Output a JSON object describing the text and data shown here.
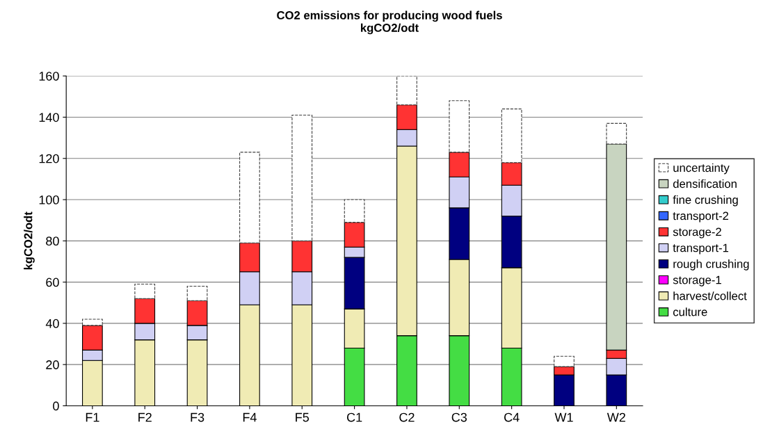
{
  "chart_data": {
    "type": "bar",
    "stacked": true,
    "title": "CO2 emissions for producing wood fuels\nkgCO2/odt",
    "ylabel": "kgCO2/odt",
    "categories": [
      "F1",
      "F2",
      "F3",
      "F4",
      "F5",
      "C1",
      "C2",
      "C3",
      "C4",
      "W1",
      "W2"
    ],
    "series": [
      {
        "name": "culture",
        "color": "#44dd44",
        "values": [
          0,
          0,
          0,
          0,
          0,
          28,
          34,
          34,
          28,
          0,
          0
        ]
      },
      {
        "name": "harvest/collect",
        "color": "#f0ebb4",
        "values": [
          22,
          32,
          32,
          49,
          49,
          19,
          92,
          37,
          39,
          0,
          0
        ]
      },
      {
        "name": "storage-1",
        "color": "#ff00ff",
        "values": [
          0,
          0,
          0,
          0,
          0,
          0,
          0,
          0,
          0,
          0,
          0
        ]
      },
      {
        "name": "rough crushing",
        "color": "#000080",
        "values": [
          0,
          0,
          0,
          0,
          0,
          25,
          0,
          25,
          25,
          15,
          15
        ]
      },
      {
        "name": "transport-1",
        "color": "#d0d0f4",
        "values": [
          5,
          8,
          7,
          16,
          16,
          5,
          8,
          15,
          15,
          0,
          8
        ]
      },
      {
        "name": "storage-2",
        "color": "#ff3333",
        "values": [
          12,
          12,
          12,
          14,
          15,
          12,
          12,
          12,
          11,
          4,
          4
        ]
      },
      {
        "name": "transport-2",
        "color": "#3366ff",
        "values": [
          0,
          0,
          0,
          0,
          0,
          0,
          0,
          0,
          0,
          0,
          0
        ]
      },
      {
        "name": "fine crushing",
        "color": "#33cccc",
        "values": [
          0,
          0,
          0,
          0,
          0,
          0,
          0,
          0,
          0,
          0,
          0
        ]
      },
      {
        "name": "densification",
        "color": "#c8d4c0",
        "values": [
          0,
          0,
          0,
          0,
          0,
          0,
          0,
          0,
          0,
          0,
          100
        ]
      },
      {
        "name": "uncertainty",
        "color": "#ffffff",
        "line_style": "dashed",
        "values": [
          3,
          7,
          7,
          44,
          61,
          11,
          14,
          25,
          26,
          5,
          10
        ]
      }
    ],
    "ylim": [
      0,
      160
    ],
    "yticks": [
      0,
      20,
      40,
      60,
      80,
      100,
      120,
      140,
      160
    ],
    "grid": "y",
    "legend": "right"
  }
}
